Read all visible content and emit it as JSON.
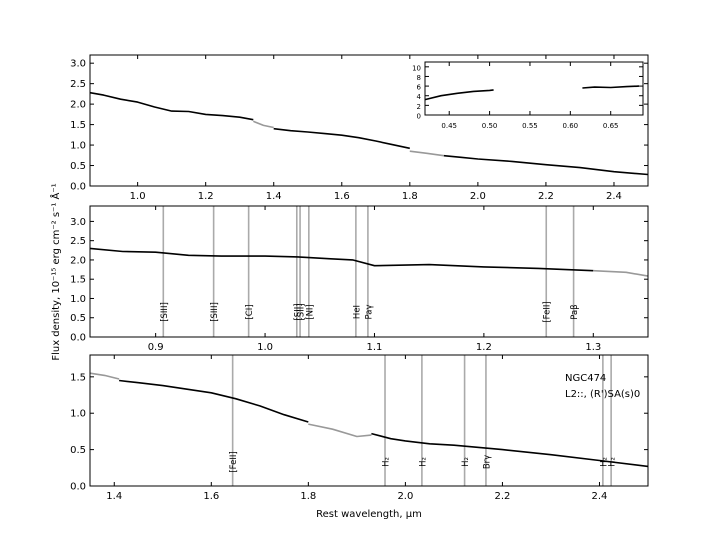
{
  "chart_data": [
    {
      "type": "line",
      "id": "panel-top",
      "xlim": [
        0.86,
        2.5
      ],
      "ylim": [
        0.0,
        3.2
      ],
      "xticks": [
        "1.0",
        "1.2",
        "1.4",
        "1.6",
        "1.8",
        "2.0",
        "2.2",
        "2.4"
      ],
      "yticks": [
        "0.0",
        "0.5",
        "1.0",
        "1.5",
        "2.0",
        "2.5",
        "3.0"
      ],
      "series": [
        {
          "color": "#000000",
          "x": [
            0.86,
            0.9,
            0.95,
            1.0,
            1.05,
            1.1,
            1.15,
            1.2,
            1.25,
            1.3,
            1.34
          ],
          "y": [
            2.28,
            2.22,
            2.12,
            2.05,
            1.93,
            1.83,
            1.82,
            1.75,
            1.72,
            1.68,
            1.62
          ]
        },
        {
          "color": "#999999",
          "x": [
            1.34,
            1.37,
            1.4
          ],
          "y": [
            1.58,
            1.48,
            1.43
          ]
        },
        {
          "color": "#000000",
          "x": [
            1.4,
            1.45,
            1.5,
            1.55,
            1.6,
            1.65,
            1.7,
            1.75,
            1.8
          ],
          "y": [
            1.4,
            1.35,
            1.32,
            1.28,
            1.24,
            1.18,
            1.1,
            1.01,
            0.92
          ]
        },
        {
          "color": "#999999",
          "x": [
            1.8,
            1.85,
            1.9
          ],
          "y": [
            0.85,
            0.8,
            0.74
          ]
        },
        {
          "color": "#000000",
          "x": [
            1.9,
            1.95,
            2.0,
            2.1,
            2.2,
            2.3,
            2.4,
            2.5
          ],
          "y": [
            0.74,
            0.7,
            0.66,
            0.6,
            0.52,
            0.45,
            0.35,
            0.28
          ]
        }
      ],
      "inset": {
        "xlim": [
          0.42,
          0.69
        ],
        "ylim": [
          0,
          11
        ],
        "xticks": [
          "0.45",
          "0.50",
          "0.55",
          "0.60",
          "0.65"
        ],
        "yticks": [
          "0",
          "2",
          "4",
          "6",
          "8",
          "10"
        ],
        "series": [
          {
            "color": "#000000",
            "x": [
              0.42,
              0.44,
              0.46,
              0.48,
              0.5,
              0.505
            ],
            "y": [
              3.2,
              4.0,
              4.5,
              4.9,
              5.1,
              5.2
            ]
          },
          {
            "color": "#000000",
            "x": [
              0.615,
              0.63,
              0.65,
              0.67,
              0.685
            ],
            "y": [
              5.6,
              5.8,
              5.7,
              5.9,
              6.0
            ]
          }
        ]
      }
    },
    {
      "type": "line",
      "id": "panel-middle",
      "xlim": [
        0.84,
        1.35
      ],
      "ylim": [
        0.0,
        3.4
      ],
      "xticks": [
        "0.9",
        "1.0",
        "1.1",
        "1.2",
        "1.3"
      ],
      "yticks": [
        "0.0",
        "0.5",
        "1.0",
        "1.5",
        "2.0",
        "2.5",
        "3.0"
      ],
      "series": [
        {
          "color": "#000000",
          "x": [
            0.84,
            0.87,
            0.9,
            0.93,
            0.96,
            1.0,
            1.03,
            1.06,
            1.08,
            1.1,
            1.15,
            1.2,
            1.25,
            1.3
          ],
          "y": [
            2.3,
            2.22,
            2.2,
            2.12,
            2.1,
            2.1,
            2.08,
            2.03,
            2.0,
            1.85,
            1.88,
            1.82,
            1.78,
            1.72
          ]
        },
        {
          "color": "#999999",
          "x": [
            1.3,
            1.33,
            1.35
          ],
          "y": [
            1.72,
            1.68,
            1.58
          ]
        }
      ],
      "lines": [
        {
          "x": 0.907,
          "label": "[SIII]"
        },
        {
          "x": 0.953,
          "label": "[SIII]"
        },
        {
          "x": 0.985,
          "label": "[CI]"
        },
        {
          "x": 1.029,
          "label": "[SII]"
        },
        {
          "x": 1.032,
          "label": "[SII]"
        },
        {
          "x": 1.04,
          "label": "[NI]"
        },
        {
          "x": 1.083,
          "label": "HeI"
        },
        {
          "x": 1.094,
          "label": "Paγ"
        },
        {
          "x": 1.257,
          "label": "[FeII]"
        },
        {
          "x": 1.282,
          "label": "Paβ"
        }
      ]
    },
    {
      "type": "line",
      "id": "panel-bottom",
      "xlim": [
        1.35,
        2.5
      ],
      "ylim": [
        0.0,
        1.8
      ],
      "xlabel": "Rest wavelength, μm",
      "xticks": [
        "1.4",
        "1.6",
        "1.8",
        "2.0",
        "2.2",
        "2.4"
      ],
      "yticks": [
        "0.0",
        "0.5",
        "1.0",
        "1.5"
      ],
      "series": [
        {
          "color": "#999999",
          "x": [
            1.35,
            1.38,
            1.41
          ],
          "y": [
            1.55,
            1.52,
            1.47
          ]
        },
        {
          "color": "#000000",
          "x": [
            1.41,
            1.45,
            1.5,
            1.55,
            1.6,
            1.65,
            1.7,
            1.75,
            1.8
          ],
          "y": [
            1.45,
            1.42,
            1.38,
            1.33,
            1.28,
            1.2,
            1.1,
            0.98,
            0.88
          ]
        },
        {
          "color": "#999999",
          "x": [
            1.8,
            1.85,
            1.9,
            1.93
          ],
          "y": [
            0.85,
            0.78,
            0.68,
            0.7
          ]
        },
        {
          "color": "#000000",
          "x": [
            1.93,
            1.97,
            2.0,
            2.05,
            2.1,
            2.2,
            2.3,
            2.4,
            2.5
          ],
          "y": [
            0.72,
            0.65,
            0.62,
            0.58,
            0.56,
            0.5,
            0.43,
            0.35,
            0.27
          ]
        }
      ],
      "lines": [
        {
          "x": 1.644,
          "label": "[FeII]"
        },
        {
          "x": 1.958,
          "label": "H₂"
        },
        {
          "x": 2.034,
          "label": "H₂"
        },
        {
          "x": 2.122,
          "label": "H₂"
        },
        {
          "x": 2.166,
          "label": "Brγ"
        },
        {
          "x": 2.407,
          "label": "H₂"
        },
        {
          "x": 2.424,
          "label": "H₂"
        }
      ],
      "annotation": [
        "NGC474",
        "L2::,  (R')SA(s)0"
      ]
    }
  ],
  "shared_ylabel": "Flux density, 10⁻¹⁵ erg cm⁻² s⁻¹ Å⁻¹"
}
